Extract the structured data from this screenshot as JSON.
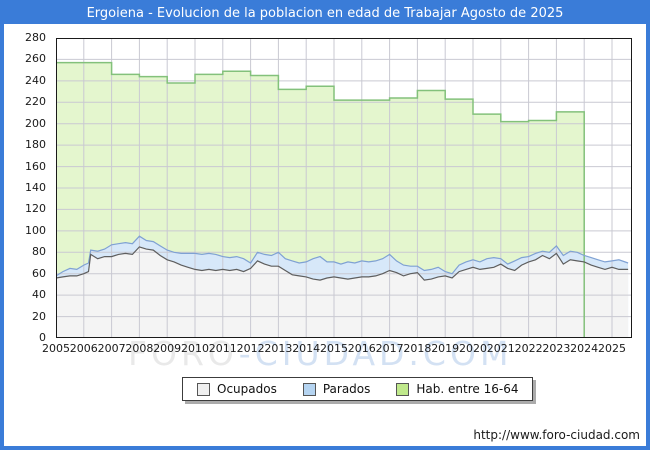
{
  "window": {
    "title": "Ergoiena - Evolucion de la poblacion en edad de Trabajar Agosto de 2025"
  },
  "footer": {
    "url": "http://www.foro-ciudad.com"
  },
  "watermark": {
    "part1": "FORO",
    "part2": "-CIUDAD.COM",
    "color1": "#e9e9e9",
    "color2": "#d3e1f3"
  },
  "colors": {
    "titlebar": "#3a7cd8",
    "frame": "#3a7cd8",
    "grid": "#c9c9d2",
    "plot_border": "#1a1a1a"
  },
  "chart_data": {
    "type": "area",
    "title": "Ergoiena - Evolucion de la poblacion en edad de Trabajar Agosto de 2025",
    "xlabel": "",
    "ylabel": "",
    "grid": true,
    "legend_position": "bottom",
    "x_axis": {
      "min": 2005,
      "max": 2025.72,
      "ticks": [
        2005,
        2006,
        2007,
        2008,
        2009,
        2010,
        2011,
        2012,
        2013,
        2014,
        2015,
        2016,
        2017,
        2018,
        2019,
        2020,
        2021,
        2022,
        2023,
        2024,
        2025
      ]
    },
    "y_axis": {
      "min": 0,
      "max": 280,
      "step": 20,
      "ticks": [
        0,
        20,
        40,
        60,
        80,
        100,
        120,
        140,
        160,
        180,
        200,
        220,
        240,
        260,
        280
      ]
    },
    "series": [
      {
        "name": "Ocupados",
        "fill": "#f4f4f4",
        "line": "#5e5e5e",
        "swatch": "#efefef",
        "note": "monthly series, values approximated quarterly; x = year fraction",
        "points": [
          [
            2005,
            56
          ],
          [
            2005.25,
            57
          ],
          [
            2005.5,
            58
          ],
          [
            2005.75,
            58
          ],
          [
            2006,
            60
          ],
          [
            2006.17,
            62
          ],
          [
            2006.25,
            78
          ],
          [
            2006.5,
            74
          ],
          [
            2006.75,
            76
          ],
          [
            2007,
            76
          ],
          [
            2007.25,
            78
          ],
          [
            2007.5,
            79
          ],
          [
            2007.75,
            78
          ],
          [
            2008,
            85
          ],
          [
            2008.25,
            83
          ],
          [
            2008.5,
            82
          ],
          [
            2008.75,
            77
          ],
          [
            2009,
            73
          ],
          [
            2009.25,
            71
          ],
          [
            2009.5,
            68
          ],
          [
            2009.75,
            66
          ],
          [
            2010,
            64
          ],
          [
            2010.25,
            63
          ],
          [
            2010.5,
            64
          ],
          [
            2010.75,
            63
          ],
          [
            2011,
            64
          ],
          [
            2011.25,
            63
          ],
          [
            2011.5,
            64
          ],
          [
            2011.75,
            62
          ],
          [
            2012,
            65
          ],
          [
            2012.25,
            72
          ],
          [
            2012.5,
            69
          ],
          [
            2012.75,
            67
          ],
          [
            2013,
            67
          ],
          [
            2013.25,
            63
          ],
          [
            2013.5,
            59
          ],
          [
            2013.75,
            58
          ],
          [
            2014,
            57
          ],
          [
            2014.25,
            55
          ],
          [
            2014.5,
            54
          ],
          [
            2014.75,
            56
          ],
          [
            2015,
            57
          ],
          [
            2015.25,
            56
          ],
          [
            2015.5,
            55
          ],
          [
            2015.75,
            56
          ],
          [
            2016,
            57
          ],
          [
            2016.25,
            57
          ],
          [
            2016.5,
            58
          ],
          [
            2016.75,
            60
          ],
          [
            2017,
            63
          ],
          [
            2017.25,
            61
          ],
          [
            2017.5,
            58
          ],
          [
            2017.75,
            60
          ],
          [
            2018,
            61
          ],
          [
            2018.25,
            54
          ],
          [
            2018.5,
            55
          ],
          [
            2018.75,
            57
          ],
          [
            2019,
            58
          ],
          [
            2019.25,
            56
          ],
          [
            2019.5,
            62
          ],
          [
            2019.75,
            64
          ],
          [
            2020,
            66
          ],
          [
            2020.25,
            64
          ],
          [
            2020.5,
            65
          ],
          [
            2020.75,
            66
          ],
          [
            2021,
            69
          ],
          [
            2021.25,
            65
          ],
          [
            2021.5,
            63
          ],
          [
            2021.75,
            68
          ],
          [
            2022,
            71
          ],
          [
            2022.25,
            73
          ],
          [
            2022.5,
            77
          ],
          [
            2022.75,
            74
          ],
          [
            2023,
            79
          ],
          [
            2023.25,
            69
          ],
          [
            2023.5,
            73
          ],
          [
            2023.75,
            72
          ],
          [
            2024,
            71
          ],
          [
            2024.25,
            68
          ],
          [
            2024.5,
            66
          ],
          [
            2024.75,
            64
          ],
          [
            2025,
            66
          ],
          [
            2025.25,
            64
          ],
          [
            2025.58,
            64
          ]
        ]
      },
      {
        "name": "Parados",
        "fill": "#d7e8f9",
        "line": "#7fa1d3",
        "swatch": "#b5d4f1",
        "note": "stacked on Ocupados; points give top edge (Ocupados+Parados)",
        "points": [
          [
            2005,
            58
          ],
          [
            2005.25,
            62
          ],
          [
            2005.5,
            65
          ],
          [
            2005.75,
            64
          ],
          [
            2006,
            68
          ],
          [
            2006.17,
            70
          ],
          [
            2006.25,
            82
          ],
          [
            2006.5,
            81
          ],
          [
            2006.75,
            83
          ],
          [
            2007,
            87
          ],
          [
            2007.25,
            88
          ],
          [
            2007.5,
            89
          ],
          [
            2007.75,
            88
          ],
          [
            2008,
            95
          ],
          [
            2008.25,
            91
          ],
          [
            2008.5,
            90
          ],
          [
            2008.75,
            86
          ],
          [
            2009,
            82
          ],
          [
            2009.25,
            80
          ],
          [
            2009.5,
            79
          ],
          [
            2009.75,
            79
          ],
          [
            2010,
            79
          ],
          [
            2010.25,
            78
          ],
          [
            2010.5,
            79
          ],
          [
            2010.75,
            78
          ],
          [
            2011,
            76
          ],
          [
            2011.25,
            75
          ],
          [
            2011.5,
            76
          ],
          [
            2011.75,
            74
          ],
          [
            2012,
            70
          ],
          [
            2012.25,
            80
          ],
          [
            2012.5,
            78
          ],
          [
            2012.75,
            77
          ],
          [
            2013,
            80
          ],
          [
            2013.25,
            74
          ],
          [
            2013.5,
            72
          ],
          [
            2013.75,
            70
          ],
          [
            2014,
            71
          ],
          [
            2014.25,
            74
          ],
          [
            2014.5,
            76
          ],
          [
            2014.75,
            71
          ],
          [
            2015,
            71
          ],
          [
            2015.25,
            69
          ],
          [
            2015.5,
            71
          ],
          [
            2015.75,
            70
          ],
          [
            2016,
            72
          ],
          [
            2016.25,
            71
          ],
          [
            2016.5,
            72
          ],
          [
            2016.75,
            74
          ],
          [
            2017,
            78
          ],
          [
            2017.25,
            72
          ],
          [
            2017.5,
            68
          ],
          [
            2017.75,
            67
          ],
          [
            2018,
            67
          ],
          [
            2018.25,
            63
          ],
          [
            2018.5,
            64
          ],
          [
            2018.75,
            66
          ],
          [
            2019,
            62
          ],
          [
            2019.25,
            60
          ],
          [
            2019.5,
            68
          ],
          [
            2019.75,
            71
          ],
          [
            2020,
            73
          ],
          [
            2020.25,
            71
          ],
          [
            2020.5,
            74
          ],
          [
            2020.75,
            75
          ],
          [
            2021,
            74
          ],
          [
            2021.25,
            69
          ],
          [
            2021.5,
            72
          ],
          [
            2021.75,
            75
          ],
          [
            2022,
            76
          ],
          [
            2022.25,
            79
          ],
          [
            2022.5,
            81
          ],
          [
            2022.75,
            80
          ],
          [
            2023,
            86
          ],
          [
            2023.25,
            77
          ],
          [
            2023.5,
            81
          ],
          [
            2023.75,
            80
          ],
          [
            2024,
            77
          ],
          [
            2024.25,
            75
          ],
          [
            2024.5,
            73
          ],
          [
            2024.75,
            71
          ],
          [
            2025,
            72
          ],
          [
            2025.25,
            73
          ],
          [
            2025.58,
            70
          ]
        ]
      },
      {
        "name": "Hab. entre 16-64",
        "fill": "#e4f6ce",
        "line": "#83c17b",
        "swatch": "#c0e98c",
        "note": "annual step series (padron), last value holds through 2023, series ends Jan 2024",
        "annual_step": true,
        "ends_at": 2024,
        "points": [
          [
            2005,
            257
          ],
          [
            2006,
            257
          ],
          [
            2007,
            246
          ],
          [
            2008,
            244
          ],
          [
            2009,
            238
          ],
          [
            2010,
            246
          ],
          [
            2011,
            249
          ],
          [
            2012,
            245
          ],
          [
            2013,
            232
          ],
          [
            2014,
            235
          ],
          [
            2015,
            222
          ],
          [
            2016,
            222
          ],
          [
            2017,
            224
          ],
          [
            2018,
            231
          ],
          [
            2019,
            223
          ],
          [
            2020,
            209
          ],
          [
            2021,
            202
          ],
          [
            2022,
            203
          ],
          [
            2023,
            211
          ]
        ]
      }
    ]
  }
}
